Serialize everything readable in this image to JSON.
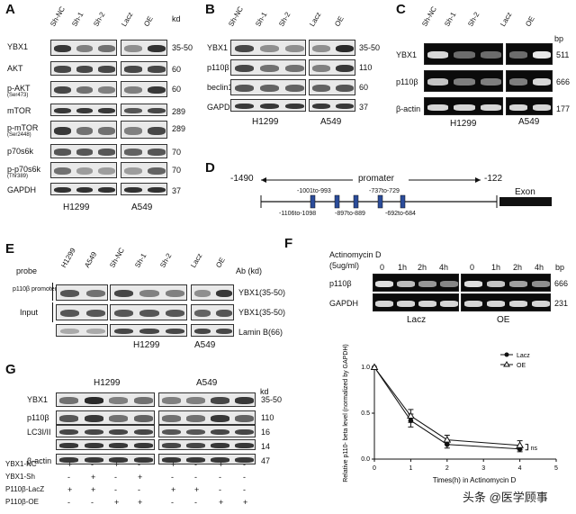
{
  "panels": {
    "A": {
      "label": "A",
      "lanes": [
        "Sh-NC",
        "Sh-1",
        "Sh-2",
        "Lacz",
        "OE"
      ],
      "unit": "kd",
      "rows": [
        {
          "name": "YBX1",
          "sub": "",
          "kd": "35-50"
        },
        {
          "name": "AKT",
          "sub": "",
          "kd": "60"
        },
        {
          "name": "p-AKT",
          "sub": "(Ser473)",
          "kd": "60"
        },
        {
          "name": "mTOR",
          "sub": "",
          "kd": "289"
        },
        {
          "name": "p-mTOR",
          "sub": "(Ser2448)",
          "kd": "289"
        },
        {
          "name": "p70s6k",
          "sub": "",
          "kd": "70"
        },
        {
          "name": "p-p70s6k",
          "sub": "(Thr389)",
          "kd": "70"
        },
        {
          "name": "GAPDH",
          "sub": "",
          "kd": "37"
        }
      ],
      "cells": [
        "H1299",
        "A549"
      ]
    },
    "B": {
      "label": "B",
      "lanes": [
        "Sh-NC",
        "Sh-1",
        "Sh-2",
        "Lacz",
        "OE"
      ],
      "rows": [
        {
          "name": "YBX1",
          "kd": "35-50"
        },
        {
          "name": "p110β",
          "kd": "110"
        },
        {
          "name": "beclin1",
          "kd": "60"
        },
        {
          "name": "GAPDH",
          "kd": "37"
        }
      ],
      "cells": [
        "H1299",
        "A549"
      ]
    },
    "C": {
      "label": "C",
      "lanes": [
        "Sh-NC",
        "Sh-1",
        "Sh-2",
        "Lacz",
        "OE"
      ],
      "unit": "bp",
      "rows": [
        {
          "name": "YBX1",
          "bp": "511"
        },
        {
          "name": "p110β",
          "bp": "666"
        },
        {
          "name": "β-actin",
          "bp": "177"
        }
      ],
      "cells": [
        "H1299",
        "A549"
      ]
    },
    "D": {
      "label": "D",
      "left": "-1490",
      "promoter": "promater",
      "right": "-122",
      "exon": "Exon",
      "sites_top": [
        "-1001to-993",
        "-737to-729"
      ],
      "sites_bottom": [
        "-1106to-1098",
        "-897to-889",
        "-692to-684"
      ]
    },
    "E": {
      "label": "E",
      "probe": "probe",
      "lanes": [
        "H1299",
        "A549",
        "Sh-NC",
        "Sh-1",
        "Sh-2",
        "Lacz",
        "OE"
      ],
      "ab_header": "Ab (kd)",
      "promoter_label": "p110β promoter -122to-1490",
      "input_label": "Input",
      "rows": [
        "YBX1(35-50)",
        "YBX1(35-50)",
        "Lamin B(66)"
      ],
      "cells": [
        "H1299",
        "A549"
      ]
    },
    "F": {
      "label": "F",
      "treatment": "Actinomycin D",
      "dose": "(5ug/ml)",
      "times": [
        "0",
        "1h",
        "2h",
        "4h",
        "0",
        "1h",
        "2h",
        "4h"
      ],
      "unit": "bp",
      "rows": [
        {
          "name": "p110β",
          "bp": "666"
        },
        {
          "name": "GAPDH",
          "bp": "231"
        }
      ],
      "groups": [
        "Lacz",
        "OE"
      ]
    },
    "G": {
      "label": "G",
      "cells": [
        "H1299",
        "A549"
      ],
      "unit": "kd",
      "rows": [
        {
          "name": "YBX1",
          "kd": "35-50"
        },
        {
          "name": "p110β",
          "kd": "110"
        },
        {
          "name": "LC3I/II",
          "kd": "16"
        },
        {
          "name": "",
          "kd": "14"
        },
        {
          "name": "β-actin",
          "kd": "47"
        }
      ],
      "conditions": [
        {
          "name": "YBX1-NC",
          "marks": [
            "+",
            "-",
            "+",
            "-",
            "+",
            "-",
            "+",
            "-"
          ]
        },
        {
          "name": "YBX1-Sh",
          "marks": [
            "-",
            "+",
            "-",
            "+",
            "-",
            "-",
            "-",
            "-"
          ]
        },
        {
          "name": "P110β-LacZ",
          "marks": [
            "+",
            "+",
            "-",
            "-",
            "+",
            "+",
            "-",
            "-"
          ]
        },
        {
          "name": "P110β-OE",
          "marks": [
            "-",
            "-",
            "+",
            "+",
            "-",
            "-",
            "+",
            "+"
          ]
        }
      ]
    }
  },
  "chart_data": {
    "type": "line",
    "title": "",
    "xlabel": "Times(h) in Actinomycin D",
    "ylabel": "Relative p110- beta level (normalized by GAPDH)",
    "xlim": [
      0,
      5
    ],
    "ylim": [
      0,
      1.0
    ],
    "xticks": [
      0,
      1,
      2,
      3,
      4,
      5
    ],
    "yticks": [
      0.0,
      0.5,
      1.0
    ],
    "legend_position": "top-right",
    "x": [
      0,
      1,
      2,
      4
    ],
    "series": [
      {
        "name": "Lacz",
        "values": [
          1.0,
          0.42,
          0.16,
          0.11
        ],
        "err": [
          0.0,
          0.07,
          0.04,
          0.03
        ],
        "marker": "filled-circle"
      },
      {
        "name": "OE",
        "values": [
          1.0,
          0.47,
          0.21,
          0.15
        ],
        "err": [
          0.0,
          0.07,
          0.05,
          0.05
        ],
        "marker": "open-triangle"
      }
    ],
    "annotation": "ns"
  },
  "watermark": "头条 @医学顾事"
}
